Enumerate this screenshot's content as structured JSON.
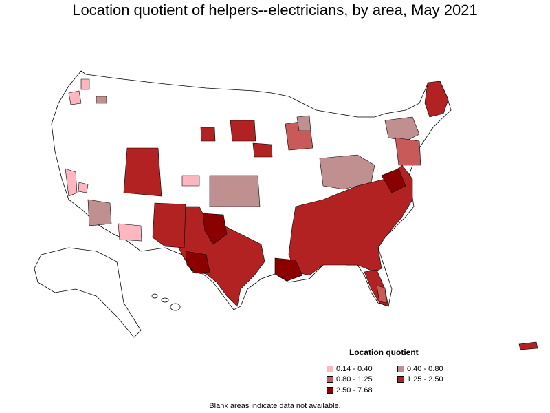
{
  "title": "Location quotient of helpers--electricians, by area, May 2021",
  "legend": {
    "title": "Location quotient",
    "items": [
      {
        "label": "0.14 - 0.40",
        "color": "#ffb6c1"
      },
      {
        "label": "0.40 - 0.80",
        "color": "#c09090"
      },
      {
        "label": "0.80 - 1.25",
        "color": "#c85a5a"
      },
      {
        "label": "1.25 - 2.50",
        "color": "#b22222"
      },
      {
        "label": "2.50 - 7.68",
        "color": "#8b0000"
      }
    ]
  },
  "footnote": "Blank areas indicate data not available.",
  "map": {
    "region": "United States",
    "colors": {
      "no_data": "#ffffff",
      "border": "#000000"
    }
  }
}
